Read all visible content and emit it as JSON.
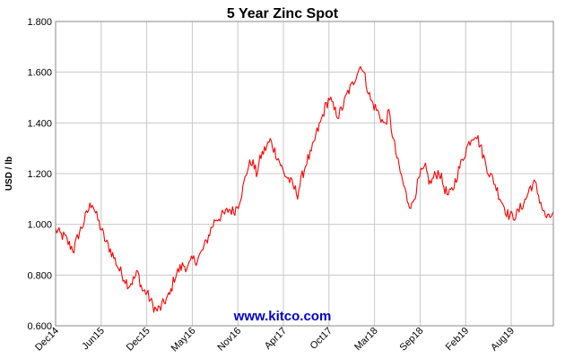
{
  "chart_data": {
    "type": "line",
    "title": "5 Year Zinc Spot",
    "xlabel": "",
    "ylabel": "USD / lb",
    "ylim": [
      0.6,
      1.8
    ],
    "y_ticks": [
      "0.600",
      "0.800",
      "1.000",
      "1.200",
      "1.400",
      "1.600",
      "1.800"
    ],
    "x_ticks": [
      "Dec14",
      "Jun15",
      "Dec15",
      "May16",
      "Nov16",
      "Apr17",
      "Oct17",
      "Mar18",
      "Sep18",
      "Feb19",
      "Aug19"
    ],
    "grid": true,
    "line_color": "#ff0000",
    "series": [
      {
        "values": [
          0.98,
          0.96,
          0.95,
          0.92,
          0.9,
          0.96,
          1.0,
          1.05,
          1.09,
          1.03,
          0.98,
          0.93,
          0.9,
          0.86,
          0.82,
          0.79,
          0.76,
          0.78,
          0.81,
          0.74,
          0.73,
          0.69,
          0.66,
          0.67,
          0.7,
          0.72,
          0.79,
          0.82,
          0.84,
          0.83,
          0.86,
          0.86,
          0.89,
          0.93,
          0.98,
          1.02,
          1.03,
          1.04,
          1.06,
          1.05,
          1.08,
          1.14,
          1.22,
          1.25,
          1.2,
          1.27,
          1.3,
          1.33,
          1.29,
          1.25,
          1.2,
          1.18,
          1.15,
          1.12,
          1.19,
          1.25,
          1.28,
          1.35,
          1.4,
          1.46,
          1.5,
          1.45,
          1.43,
          1.47,
          1.52,
          1.55,
          1.6,
          1.63,
          1.56,
          1.49,
          1.46,
          1.43,
          1.39,
          1.44,
          1.33,
          1.24,
          1.17,
          1.1,
          1.07,
          1.14,
          1.2,
          1.22,
          1.16,
          1.19,
          1.21,
          1.15,
          1.11,
          1.14,
          1.2,
          1.25,
          1.3,
          1.34,
          1.36,
          1.31,
          1.25,
          1.2,
          1.17,
          1.12,
          1.08,
          1.04,
          1.03,
          1.04,
          1.07,
          1.1,
          1.15,
          1.16,
          1.1,
          1.04,
          1.02,
          1.05
        ]
      }
    ]
  },
  "watermark": {
    "text": "www.kitco.com",
    "color": "#0000cc"
  }
}
